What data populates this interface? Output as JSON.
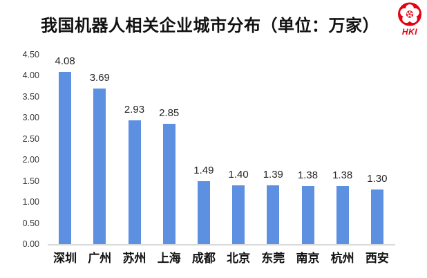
{
  "header": {
    "title": "我国机器人相关企业城市分布（单位：万家）",
    "logo_text": "HKI",
    "logo_color": "#E60012"
  },
  "chart_data": {
    "type": "bar",
    "title": "我国机器人相关企业城市分布",
    "unit_label": "单位：万家",
    "categories": [
      "深圳",
      "广州",
      "苏州",
      "上海",
      "成都",
      "北京",
      "东莞",
      "南京",
      "杭州",
      "西安"
    ],
    "values": [
      4.08,
      3.69,
      2.93,
      2.85,
      1.49,
      1.4,
      1.39,
      1.38,
      1.38,
      1.3
    ],
    "value_labels": [
      "4.08",
      "3.69",
      "2.93",
      "2.85",
      "1.49",
      "1.40",
      "1.39",
      "1.38",
      "1.38",
      "1.30"
    ],
    "y_ticks": [
      "4.50",
      "4.00",
      "3.50",
      "3.00",
      "2.50",
      "2.00",
      "1.50",
      "1.00",
      "0.50",
      "0.00"
    ],
    "ylim": [
      0,
      4.5
    ],
    "xlabel": "",
    "ylabel": "",
    "grid": false,
    "legend": false,
    "bar_color": "#5E90E2",
    "axis_line_color": "#D9D9D9"
  }
}
